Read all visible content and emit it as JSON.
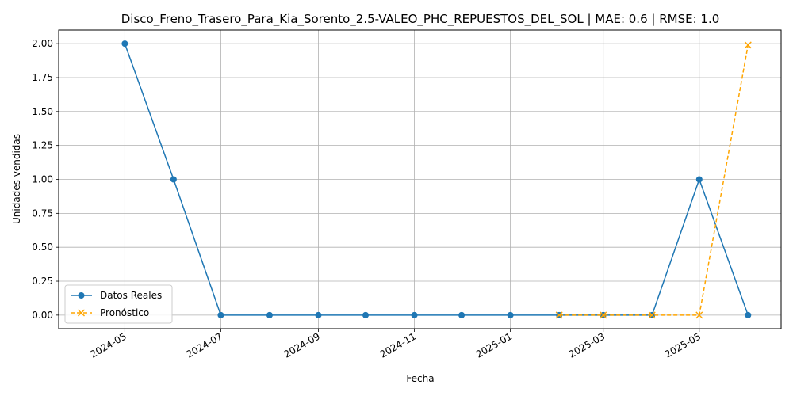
{
  "chart_data": {
    "type": "line",
    "title": "Disco_Freno_Trasero_Para_Kia_Sorento_2.5-VALEO_PHC_REPUESTOS_DEL_SOL | MAE: 0.6 | RMSE: 1.0",
    "xlabel": "Fecha",
    "ylabel": "Unidades vendidas",
    "x_range": [
      "2024-03-20",
      "2025-06-22"
    ],
    "ylim": [
      -0.1,
      2.1
    ],
    "x_ticks": [
      "2024-05",
      "2024-07",
      "2024-09",
      "2024-11",
      "2025-01",
      "2025-03",
      "2025-05"
    ],
    "y_ticks": [
      "0.00",
      "0.25",
      "0.50",
      "0.75",
      "1.00",
      "1.25",
      "1.50",
      "1.75",
      "2.00"
    ],
    "grid": true,
    "legend_position": "lower-left",
    "series": [
      {
        "name": "Datos Reales",
        "color": "#1f77b4",
        "marker": "circle",
        "linestyle": "solid",
        "x": [
          "2024-05-01",
          "2024-06-01",
          "2024-07-01",
          "2024-08-01",
          "2024-09-01",
          "2024-10-01",
          "2024-11-01",
          "2024-12-01",
          "2025-01-01",
          "2025-02-01",
          "2025-03-01",
          "2025-04-01",
          "2025-05-01",
          "2025-06-01"
        ],
        "values": [
          2,
          1,
          0,
          0,
          0,
          0,
          0,
          0,
          0,
          0,
          0,
          0,
          1,
          0
        ]
      },
      {
        "name": "Pronóstico",
        "color": "#ffa500",
        "marker": "x",
        "linestyle": "dashed",
        "x": [
          "2025-02-01",
          "2025-03-01",
          "2025-04-01",
          "2025-05-01",
          "2025-06-01"
        ],
        "values": [
          0,
          0,
          0,
          0,
          1.99
        ]
      }
    ]
  }
}
